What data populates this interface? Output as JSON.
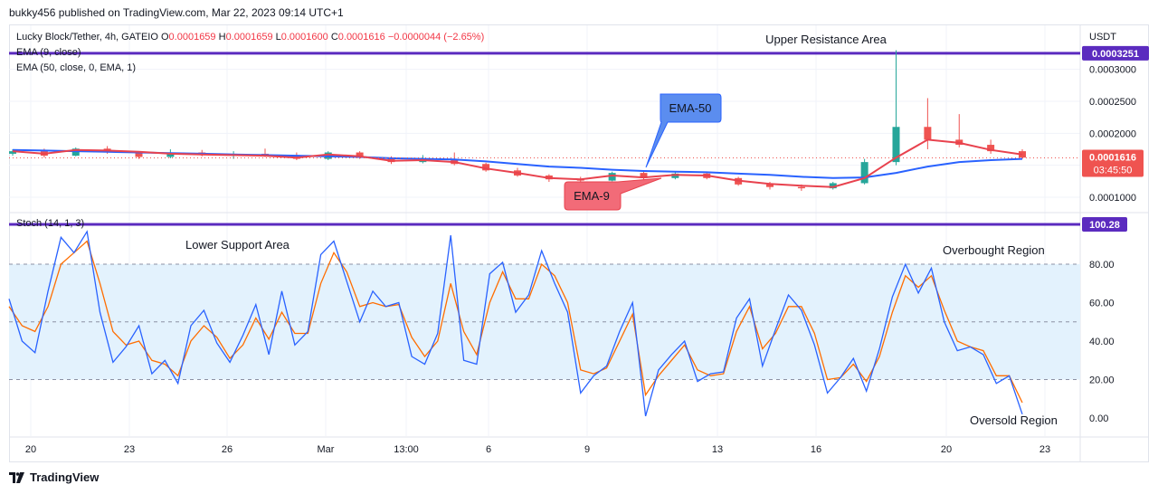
{
  "publisher_line": "bukky456 published on TradingView.com, Mar 22, 2023 09:14 UTC+1",
  "footer_brand": "TradingView",
  "colors": {
    "up": "#26a69a",
    "down": "#ef5350",
    "ema9": "#e8424e",
    "ema50": "#2962ff",
    "stoch_k": "#2962ff",
    "stoch_d": "#ff6d00",
    "level_line": "#5b2bbf",
    "band": "#e3f2fd"
  },
  "legend": {
    "symbol": "Lucky Block/Tether, 4h, GATEIO",
    "o_label": "O",
    "o": "0.0001659",
    "h_label": "H",
    "h": "0.0001659",
    "l_label": "L",
    "l": "0.0001600",
    "c_label": "C",
    "c": "0.0001616",
    "change": "−0.0000044 (−2.65%)",
    "ema9": "EMA (9, close)",
    "ema50": "EMA (50, close, 0, EMA, 1)",
    "stoch": "Stoch (14, 1, 3)"
  },
  "annotations": {
    "upper_resistance": "Upper Resistance Area",
    "lower_support": "Lower Support Area",
    "overbought": "Overbought Region",
    "oversold": "Oversold Region",
    "ema50_callout": "EMA-50",
    "ema9_callout": "EMA-9"
  },
  "price_scale": {
    "currency": "USDT",
    "resistance_badge": "0.0003251",
    "last_price_badge": "0.0001616",
    "countdown": "03:45:50",
    "stoch_badge": "100.28"
  },
  "chart_data": [
    {
      "type": "candlestick",
      "title": "Lucky Block/Tether, 4h, GATEIO",
      "x_ticks": [
        "20",
        "23",
        "26",
        "Mar",
        "13:00",
        "6",
        "9",
        "13",
        "16",
        "20",
        "23"
      ],
      "y_ticks": [
        0.0003,
        0.00025,
        0.0002,
        0.00015,
        0.0001
      ],
      "y_tick_labels": [
        "0.0003000",
        "0.0002500",
        "0.0002000",
        "0.00015",
        "0.0001000"
      ],
      "ylim": [
        7.55e-05,
        0.0003535
      ],
      "resistance_level": 0.0003251,
      "last_price": 0.0001616,
      "series": [
        {
          "name": "EMA-9",
          "values": [
            0.000172,
            0.000168,
            0.000174,
            0.000173,
            0.000171,
            0.000168,
            0.000167,
            0.000166,
            0.000165,
            0.000162,
            0.000167,
            0.000164,
            0.000157,
            0.000158,
            0.000155,
            0.000145,
            0.000138,
            0.00013,
            0.000128,
            0.000134,
            0.000131,
            0.000135,
            0.000134,
            0.000126,
            0.000121,
            0.000118,
            0.000116,
            0.00013,
            0.000162,
            0.00019,
            0.000185,
            0.000174,
            0.000167
          ]
        },
        {
          "name": "EMA-50",
          "values": [
            0.000174,
            0.000173,
            0.000172,
            0.000171,
            0.00017,
            0.000169,
            0.000168,
            0.000167,
            0.000166,
            0.000165,
            0.000164,
            0.000163,
            0.000161,
            0.00016,
            0.000159,
            0.000156,
            0.000152,
            0.000148,
            0.000146,
            0.000143,
            0.000141,
            0.00014,
            0.000139,
            0.000137,
            0.000135,
            0.000132,
            0.00013,
            0.000131,
            0.000138,
            0.000148,
            0.000155,
            0.000158,
            0.00016
          ]
        }
      ],
      "candles": [
        [
          0.000168,
          0.000175,
          0.000165,
          0.000172
        ],
        [
          0.000172,
          0.000176,
          0.000162,
          0.000165
        ],
        [
          0.000165,
          0.000178,
          0.000164,
          0.000176
        ],
        [
          0.000176,
          0.00018,
          0.000168,
          0.00017
        ],
        [
          0.00017,
          0.000172,
          0.00016,
          0.000163
        ],
        [
          0.000163,
          0.000175,
          0.000161,
          0.00017
        ],
        [
          0.00017,
          0.000174,
          0.000164,
          0.000166
        ],
        [
          0.000166,
          0.000172,
          0.00016,
          0.000168
        ],
        [
          0.000168,
          0.000176,
          0.000163,
          0.000166
        ],
        [
          0.000166,
          0.00017,
          0.000158,
          0.00016
        ],
        [
          0.00016,
          0.000172,
          0.000158,
          0.00017
        ],
        [
          0.00017,
          0.000172,
          0.00016,
          0.000162
        ],
        [
          0.000162,
          0.000164,
          0.000152,
          0.000155
        ],
        [
          0.000155,
          0.000166,
          0.000153,
          0.00016
        ],
        [
          0.00016,
          0.00017,
          0.00015,
          0.000152
        ],
        [
          0.000152,
          0.000154,
          0.00014,
          0.000142
        ],
        [
          0.000142,
          0.000146,
          0.000132,
          0.000134
        ],
        [
          0.000134,
          0.000136,
          0.000124,
          0.000128
        ],
        [
          0.000128,
          0.000132,
          0.00012,
          0.000126
        ],
        [
          0.000126,
          0.00014,
          0.000125,
          0.000138
        ],
        [
          0.000138,
          0.000142,
          0.000128,
          0.00013
        ],
        [
          0.00013,
          0.00014,
          0.000128,
          0.000137
        ],
        [
          0.000137,
          0.00014,
          0.000128,
          0.00013
        ],
        [
          0.00013,
          0.000132,
          0.000118,
          0.00012
        ],
        [
          0.00012,
          0.000124,
          0.000112,
          0.000116
        ],
        [
          0.000116,
          0.00012,
          0.00011,
          0.000114
        ],
        [
          0.000114,
          0.000124,
          0.000112,
          0.000122
        ],
        [
          0.000122,
          0.00016,
          0.00012,
          0.000155
        ],
        [
          0.000155,
          0.00033,
          0.00015,
          0.00021
        ],
        [
          0.00021,
          0.000255,
          0.000175,
          0.00019
        ],
        [
          0.00019,
          0.00023,
          0.000178,
          0.000182
        ],
        [
          0.000182,
          0.00019,
          0.000168,
          0.000172
        ],
        [
          0.000172,
          0.000175,
          0.00016,
          0.000162
        ]
      ]
    },
    {
      "type": "line",
      "title": "Stoch (14, 1, 3)",
      "y_ticks": [
        80,
        60,
        40,
        20,
        0
      ],
      "y_tick_labels": [
        "80.00",
        "60.00",
        "40.00",
        "20.00",
        "0.00"
      ],
      "ylim": [
        -4,
        104
      ],
      "band": [
        20,
        80
      ],
      "level_line": 100.28,
      "series": [
        {
          "name": "%K",
          "values": [
            62,
            40,
            34,
            66,
            94,
            86,
            97,
            55,
            29,
            37,
            48,
            23,
            30,
            18,
            48,
            56,
            39,
            29,
            43,
            59,
            33,
            66,
            38,
            45,
            85,
            92,
            71,
            50,
            66,
            58,
            60,
            32,
            28,
            44,
            95,
            30,
            28,
            75,
            81,
            55,
            64,
            87,
            70,
            55,
            13,
            22,
            27,
            45,
            60,
            1,
            25,
            33,
            40,
            19,
            23,
            24,
            52,
            62,
            27,
            46,
            64,
            56,
            38,
            13,
            21,
            31,
            14,
            36,
            63,
            80,
            65,
            78,
            50,
            35,
            37,
            33,
            18,
            22,
            2
          ]
        },
        {
          "name": "%D",
          "values": [
            58,
            48,
            45,
            58,
            80,
            86,
            92,
            70,
            45,
            38,
            40,
            30,
            28,
            22,
            40,
            48,
            42,
            31,
            38,
            52,
            41,
            55,
            44,
            44,
            70,
            86,
            76,
            58,
            60,
            58,
            59,
            42,
            32,
            40,
            70,
            45,
            33,
            60,
            76,
            62,
            62,
            80,
            74,
            60,
            25,
            23,
            26,
            40,
            54,
            12,
            22,
            30,
            38,
            25,
            22,
            23,
            45,
            58,
            36,
            44,
            58,
            58,
            44,
            20,
            21,
            28,
            19,
            32,
            55,
            74,
            68,
            74,
            56,
            40,
            37,
            35,
            22,
            22,
            8
          ]
        }
      ]
    }
  ]
}
